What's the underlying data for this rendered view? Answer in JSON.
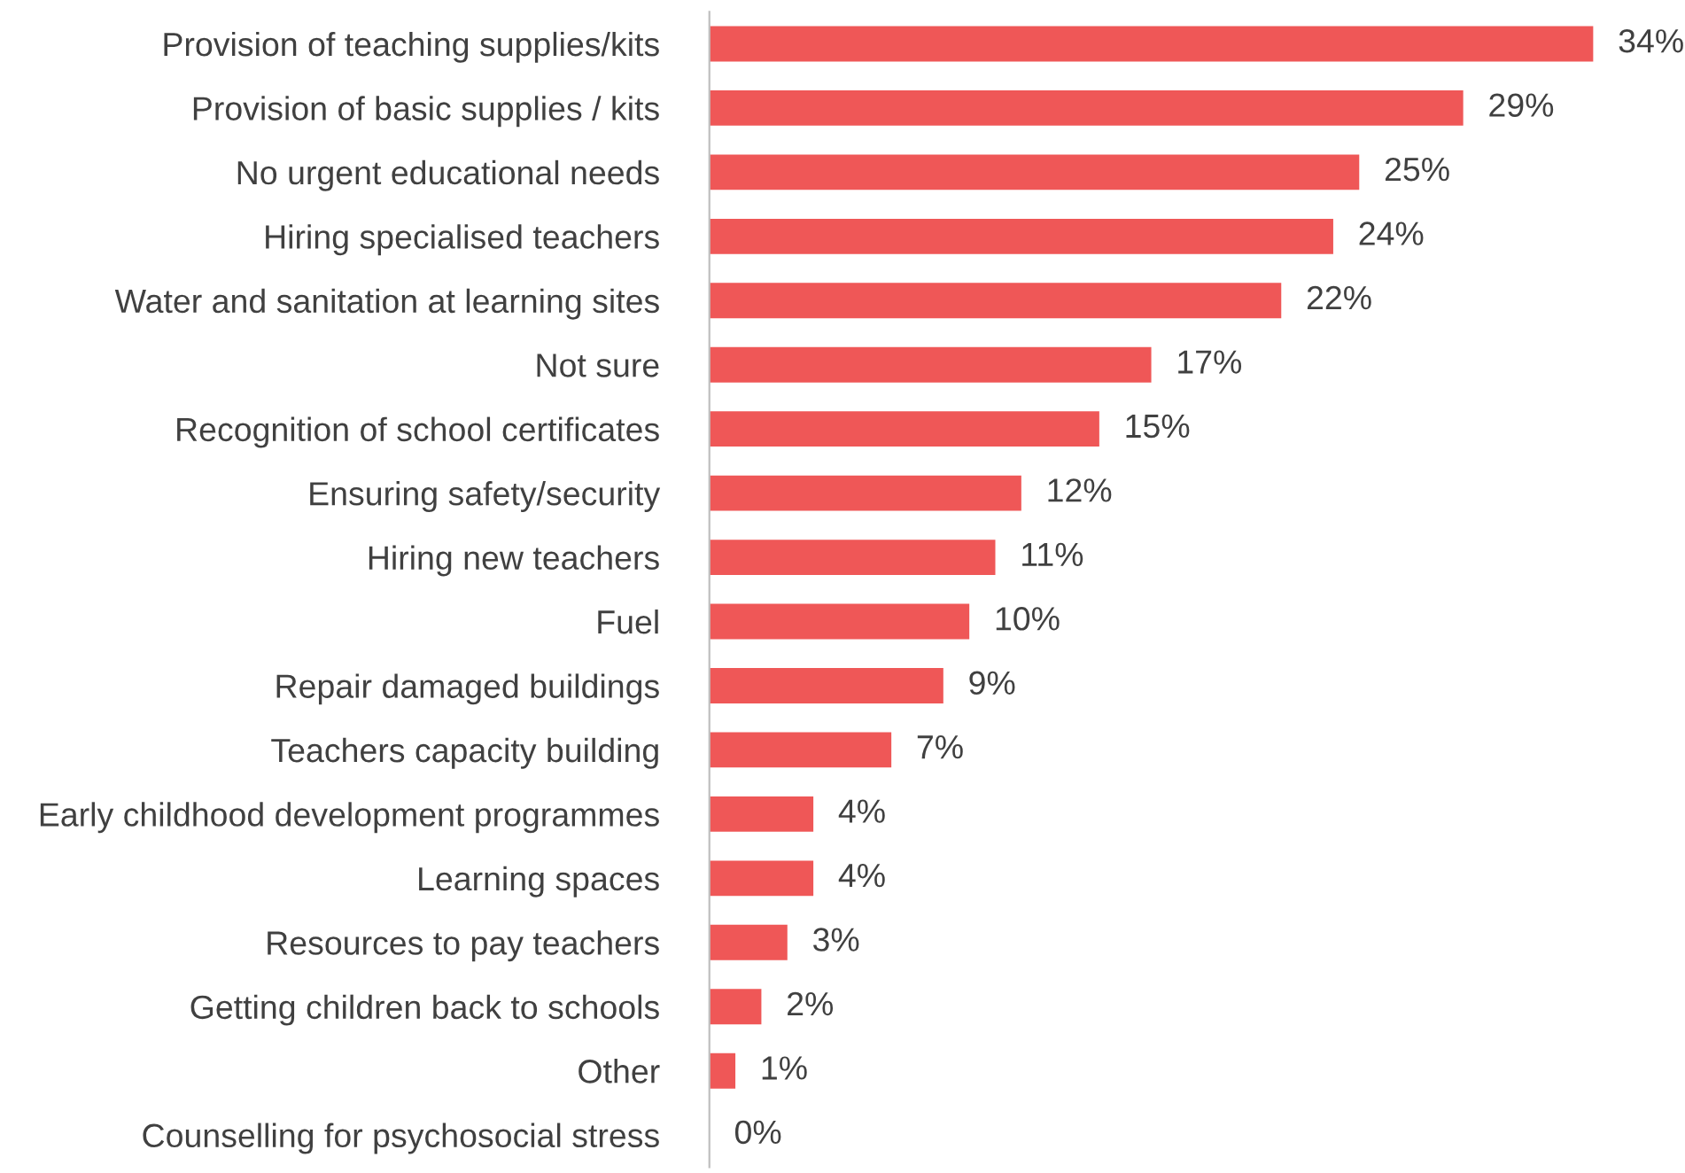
{
  "chart_data": {
    "type": "bar",
    "orientation": "horizontal",
    "categories": [
      "Provision of teaching supplies/kits",
      "Provision of basic supplies / kits",
      "No urgent educational needs",
      "Hiring specialised teachers",
      "Water and sanitation at learning sites",
      "Not sure",
      "Recognition of school certificates",
      "Ensuring safety/security",
      "Hiring new teachers",
      "Fuel",
      "Repair damaged buildings",
      "Teachers capacity building",
      "Early childhood development programmes",
      "Learning spaces",
      "Resources to pay teachers",
      "Getting children back to schools",
      "Other",
      "Counselling for psychosocial stress"
    ],
    "values": [
      34,
      29,
      25,
      24,
      22,
      17,
      15,
      12,
      11,
      10,
      9,
      7,
      4,
      4,
      3,
      2,
      1,
      0
    ],
    "value_labels": [
      "34%",
      "29%",
      "25%",
      "24%",
      "22%",
      "17%",
      "15%",
      "12%",
      "11%",
      "10%",
      "9%",
      "7%",
      "4%",
      "4%",
      "3%",
      "2%",
      "1%",
      "0%"
    ],
    "color": "#ef5757",
    "grid": false,
    "legend": false
  }
}
